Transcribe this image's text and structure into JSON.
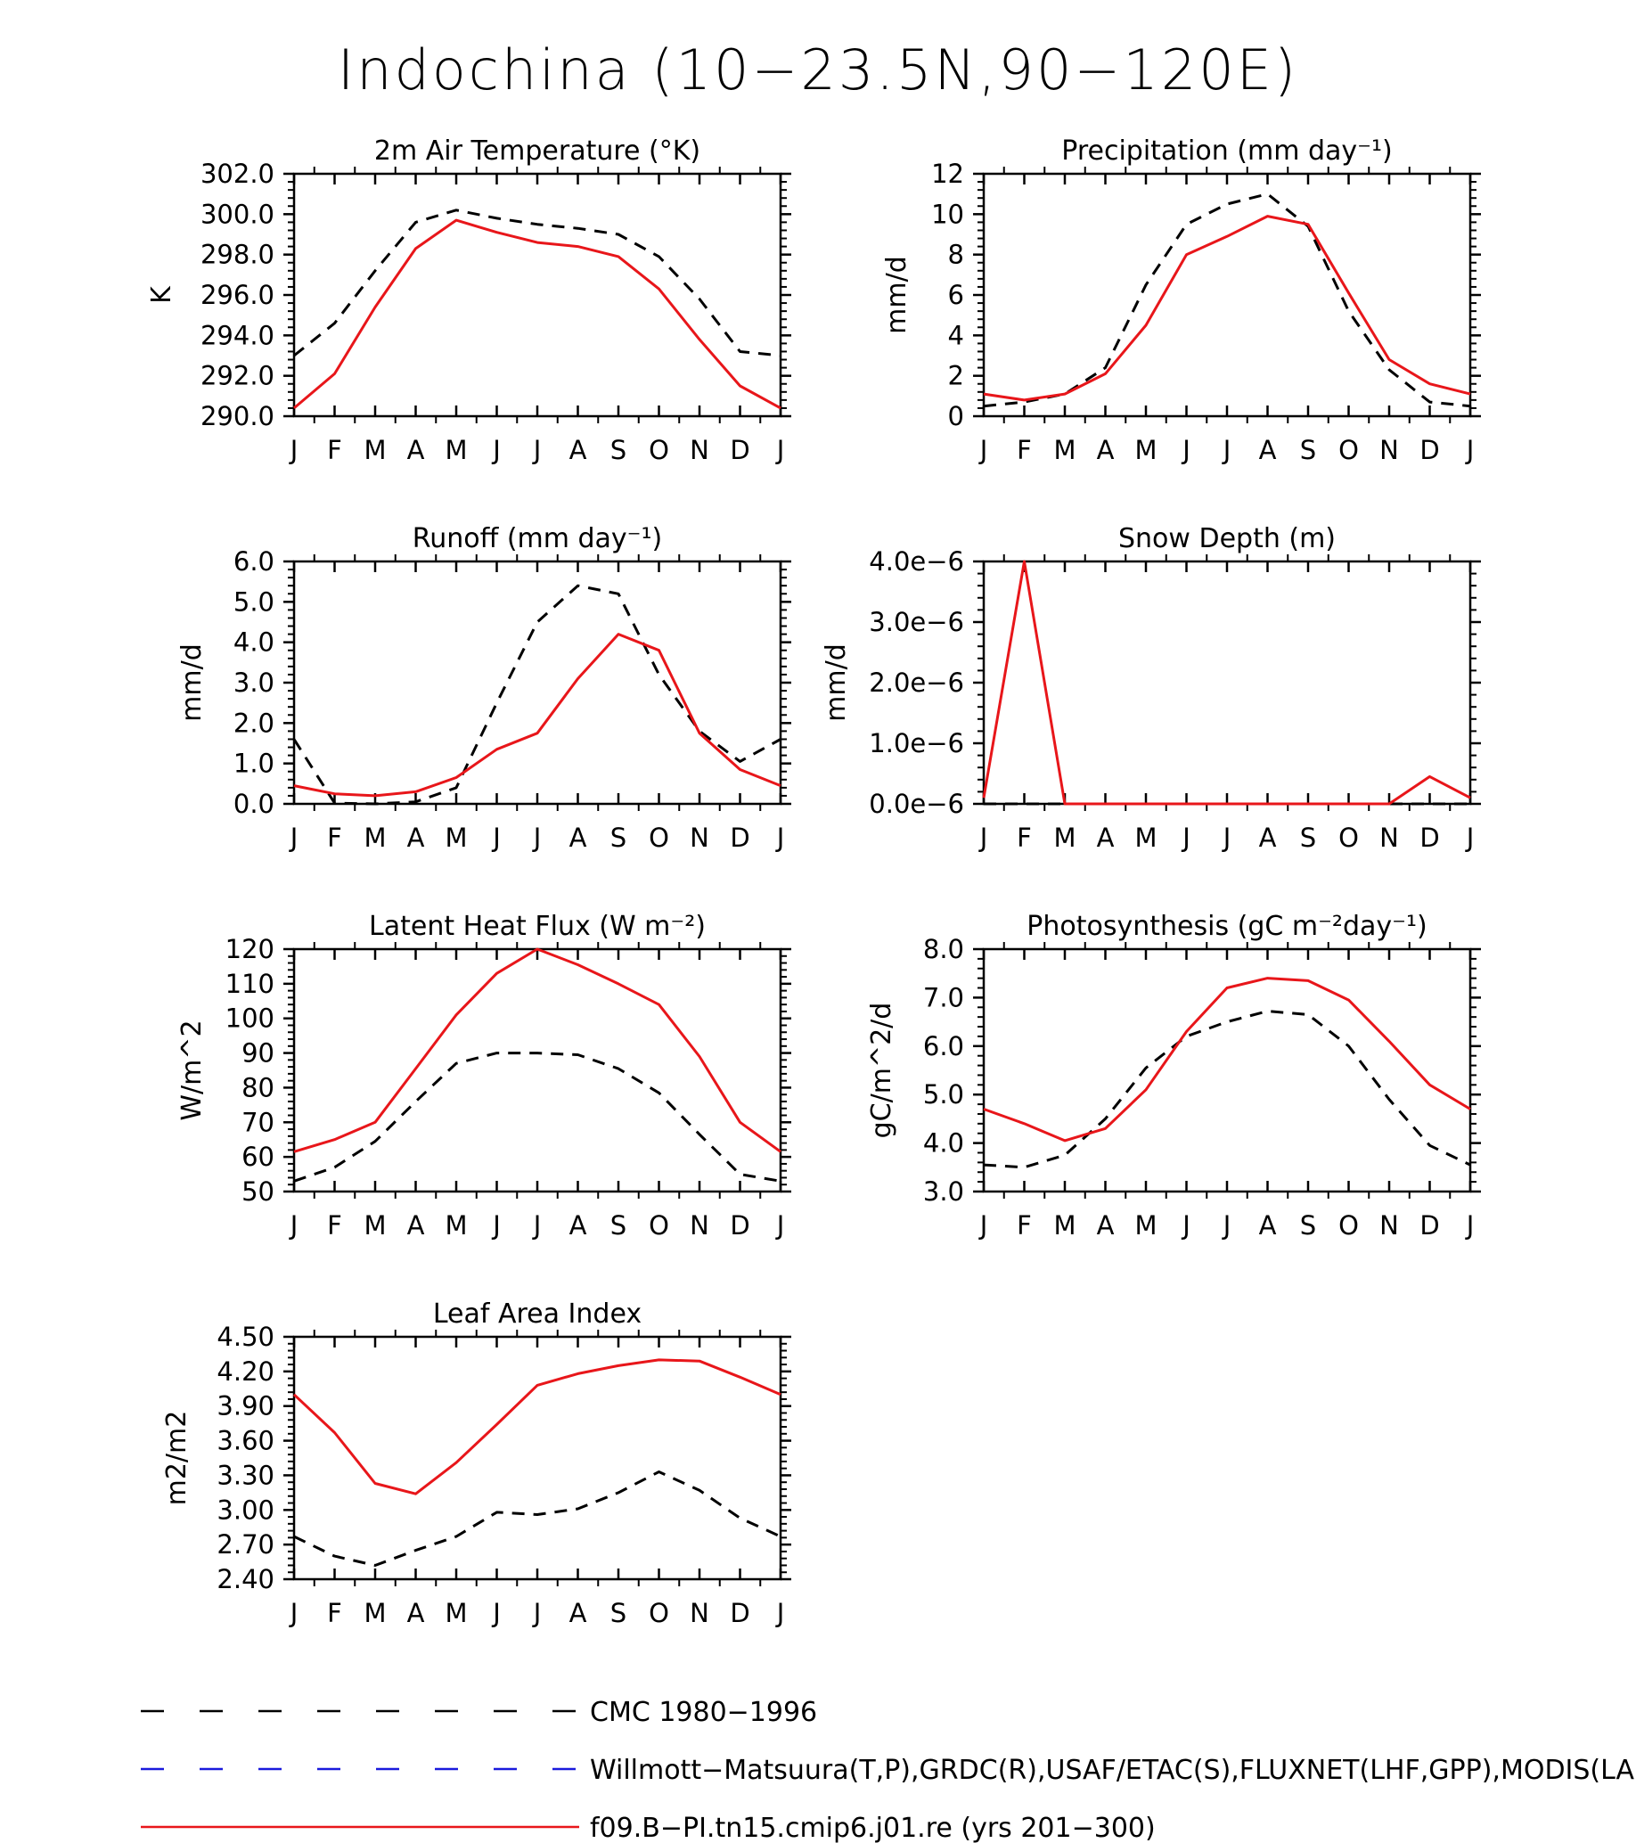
{
  "title": "Indochina (10−23.5N,90−120E)",
  "months": [
    "J",
    "F",
    "M",
    "A",
    "M",
    "J",
    "J",
    "A",
    "S",
    "O",
    "N",
    "D",
    "J"
  ],
  "legend": [
    {
      "label": "CMC 1980−1996",
      "color": "#000000",
      "style": "dashed"
    },
    {
      "label": "Willmott−Matsuura(T,P),GRDC(R),USAF/ETAC(S),FLUXNET(LHF,GPP),MODIS(LAI)",
      "color": "#1a1adc",
      "style": "dashed"
    },
    {
      "label": "f09.B−PI.tn15.cmip6.j01.re (yrs 201−300)",
      "color": "#e8161a",
      "style": "solid"
    }
  ],
  "chart_data": [
    {
      "type": "line",
      "title": "2m Air Temperature (°K)",
      "ylabel": "K",
      "ylim": [
        290,
        302
      ],
      "yticks": [
        290,
        292,
        294,
        296,
        298,
        300,
        302
      ],
      "ytick_labels": [
        "290.0",
        "292.0",
        "294.0",
        "296.0",
        "298.0",
        "300.0",
        "302.0"
      ],
      "categories": [
        "J",
        "F",
        "M",
        "A",
        "M",
        "J",
        "J",
        "A",
        "S",
        "O",
        "N",
        "D",
        "J"
      ],
      "series": [
        {
          "name": "CMC 1980−1996",
          "color": "#000000",
          "style": "dashed",
          "values": [
            293.0,
            294.6,
            297.2,
            299.6,
            300.2,
            299.8,
            299.5,
            299.3,
            299.0,
            297.9,
            295.8,
            293.2,
            293.0
          ]
        },
        {
          "name": "f09.B−PI.tn15.cmip6.j01.re (yrs 201−300)",
          "color": "#e8161a",
          "style": "solid",
          "values": [
            290.4,
            292.1,
            295.4,
            298.3,
            299.7,
            299.1,
            298.6,
            298.4,
            297.9,
            296.3,
            293.8,
            291.5,
            290.4
          ]
        }
      ]
    },
    {
      "type": "line",
      "title": "Precipitation (mm day⁻¹)",
      "ylabel": "mm/d",
      "ylim": [
        0,
        12
      ],
      "yticks": [
        0,
        2,
        4,
        6,
        8,
        10,
        12
      ],
      "ytick_labels": [
        "0",
        "2",
        "4",
        "6",
        "8",
        "10",
        "12"
      ],
      "categories": [
        "J",
        "F",
        "M",
        "A",
        "M",
        "J",
        "J",
        "A",
        "S",
        "O",
        "N",
        "D",
        "J"
      ],
      "series": [
        {
          "name": "CMC 1980−1996",
          "color": "#000000",
          "style": "dashed",
          "values": [
            0.5,
            0.7,
            1.1,
            2.4,
            6.5,
            9.5,
            10.5,
            11.0,
            9.4,
            5.2,
            2.3,
            0.7,
            0.5
          ]
        },
        {
          "name": "f09.B−PI.tn15.cmip6.j01.re (yrs 201−300)",
          "color": "#e8161a",
          "style": "solid",
          "values": [
            1.1,
            0.8,
            1.1,
            2.1,
            4.5,
            8.0,
            8.9,
            9.9,
            9.5,
            6.1,
            2.8,
            1.6,
            1.1
          ]
        }
      ]
    },
    {
      "type": "line",
      "title": "Runoff (mm day⁻¹)",
      "ylabel": "mm/d",
      "ylim": [
        0,
        6
      ],
      "yticks": [
        0,
        1,
        2,
        3,
        4,
        5,
        6
      ],
      "ytick_labels": [
        "0.0",
        "1.0",
        "2.0",
        "3.0",
        "4.0",
        "5.0",
        "6.0"
      ],
      "categories": [
        "J",
        "F",
        "M",
        "A",
        "M",
        "J",
        "J",
        "A",
        "S",
        "O",
        "N",
        "D",
        "J"
      ],
      "series": [
        {
          "name": "CMC 1980−1996",
          "color": "#000000",
          "style": "dashed",
          "values": [
            1.6,
            0.02,
            0.0,
            0.05,
            0.4,
            2.5,
            4.5,
            5.4,
            5.2,
            3.2,
            1.8,
            1.05,
            1.6
          ]
        },
        {
          "name": "f09.B−PI.tn15.cmip6.j01.re (yrs 201−300)",
          "color": "#e8161a",
          "style": "solid",
          "values": [
            0.45,
            0.25,
            0.2,
            0.3,
            0.65,
            1.35,
            1.75,
            3.1,
            4.2,
            3.8,
            1.75,
            0.85,
            0.45
          ]
        }
      ]
    },
    {
      "type": "line",
      "title": "Snow Depth (m)",
      "ylabel": "mm/d",
      "ylim": [
        0,
        4e-06
      ],
      "yticks": [
        0,
        1e-06,
        2e-06,
        3e-06,
        4e-06
      ],
      "ytick_labels": [
        "0.0e−6",
        "1.0e−6",
        "2.0e−6",
        "3.0e−6",
        "4.0e−6"
      ],
      "categories": [
        "J",
        "F",
        "M",
        "A",
        "M",
        "J",
        "J",
        "A",
        "S",
        "O",
        "N",
        "D",
        "J"
      ],
      "series": [
        {
          "name": "CMC 1980−1996",
          "color": "#000000",
          "style": "dashed",
          "values": [
            0,
            0,
            0,
            0,
            0,
            0,
            0,
            0,
            0,
            0,
            0,
            0,
            0
          ]
        },
        {
          "name": "f09.B−PI.tn15.cmip6.j01.re (yrs 201−300)",
          "color": "#e8161a",
          "style": "solid",
          "values": [
            1e-07,
            4e-06,
            0,
            0,
            0,
            0,
            0,
            0,
            0,
            0,
            0,
            4.5e-07,
            1e-07
          ]
        }
      ]
    },
    {
      "type": "line",
      "title": "Latent Heat Flux (W m⁻²)",
      "ylabel": "W/m^2",
      "ylim": [
        50,
        120
      ],
      "yticks": [
        50,
        60,
        70,
        80,
        90,
        100,
        110,
        120
      ],
      "ytick_labels": [
        "50",
        "60",
        "70",
        "80",
        "90",
        "100",
        "110",
        "120"
      ],
      "categories": [
        "J",
        "F",
        "M",
        "A",
        "M",
        "J",
        "J",
        "A",
        "S",
        "O",
        "N",
        "D",
        "J"
      ],
      "series": [
        {
          "name": "CMC 1980−1996",
          "color": "#000000",
          "style": "dashed",
          "values": [
            53,
            57,
            64.5,
            76,
            87,
            90,
            90,
            89.5,
            85.5,
            78.5,
            66.5,
            55,
            53
          ]
        },
        {
          "name": "f09.B−PI.tn15.cmip6.j01.re (yrs 201−300)",
          "color": "#e8161a",
          "style": "solid",
          "values": [
            61.5,
            65,
            70,
            85.5,
            101,
            113,
            120,
            115.5,
            110,
            104,
            89,
            70,
            61.5
          ]
        }
      ]
    },
    {
      "type": "line",
      "title": "Photosynthesis (gC m⁻²day⁻¹)",
      "ylabel": "gC/m^2/d",
      "ylim": [
        3,
        8
      ],
      "yticks": [
        3,
        4,
        5,
        6,
        7,
        8
      ],
      "ytick_labels": [
        "3.0",
        "4.0",
        "5.0",
        "6.0",
        "7.0",
        "8.0"
      ],
      "categories": [
        "J",
        "F",
        "M",
        "A",
        "M",
        "J",
        "J",
        "A",
        "S",
        "O",
        "N",
        "D",
        "J"
      ],
      "series": [
        {
          "name": "CMC 1980−1996",
          "color": "#000000",
          "style": "dashed",
          "values": [
            3.55,
            3.5,
            3.75,
            4.5,
            5.55,
            6.2,
            6.5,
            6.72,
            6.65,
            6.0,
            4.9,
            3.95,
            3.55
          ]
        },
        {
          "name": "f09.B−PI.tn15.cmip6.j01.re (yrs 201−300)",
          "color": "#e8161a",
          "style": "solid",
          "values": [
            4.7,
            4.4,
            4.05,
            4.3,
            5.1,
            6.3,
            7.2,
            7.4,
            7.35,
            6.95,
            6.1,
            5.2,
            4.7
          ]
        }
      ]
    },
    {
      "type": "line",
      "title": "Leaf Area Index",
      "ylabel": "m2/m2",
      "ylim": [
        2.4,
        4.5
      ],
      "yticks": [
        2.4,
        2.7,
        3.0,
        3.3,
        3.6,
        3.9,
        4.2,
        4.5
      ],
      "ytick_labels": [
        "2.40",
        "2.70",
        "3.00",
        "3.30",
        "3.60",
        "3.90",
        "4.20",
        "4.50"
      ],
      "categories": [
        "J",
        "F",
        "M",
        "A",
        "M",
        "J",
        "J",
        "A",
        "S",
        "O",
        "N",
        "D",
        "J"
      ],
      "series": [
        {
          "name": "CMC 1980−1996",
          "color": "#000000",
          "style": "dashed",
          "values": [
            2.77,
            2.6,
            2.52,
            2.65,
            2.77,
            2.98,
            2.96,
            3.01,
            3.15,
            3.33,
            3.17,
            2.93,
            2.77
          ]
        },
        {
          "name": "f09.B−PI.tn15.cmip6.j01.re (yrs 201−300)",
          "color": "#e8161a",
          "style": "solid",
          "values": [
            4.0,
            3.67,
            3.23,
            3.14,
            3.41,
            3.74,
            4.08,
            4.18,
            4.25,
            4.3,
            4.29,
            4.15,
            4.0
          ]
        }
      ]
    }
  ]
}
